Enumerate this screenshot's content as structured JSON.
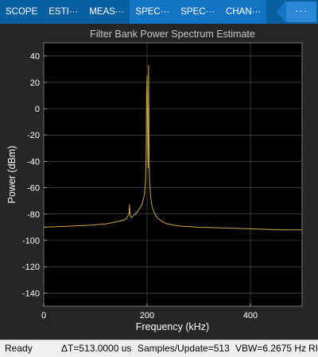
{
  "tabs": [
    {
      "label": "SCOPE",
      "active": false
    },
    {
      "label": "ESTI···",
      "active": false
    },
    {
      "label": "MEAS···",
      "active": false
    },
    {
      "label": "SPEC···",
      "active": true
    },
    {
      "label": "SPEC···",
      "active": true
    },
    {
      "label": "CHAN···",
      "active": true
    }
  ],
  "overflow_label": "···",
  "status": {
    "state": "Ready",
    "delta_t": "ΔT=513.0000 us",
    "samples": "Samples/Update=513",
    "vbw": "VBW=6.2675 Hz",
    "trailing": "RI"
  },
  "colors": {
    "toolstrip": "#0a5fa0",
    "plot_bg": "#000000",
    "trace": "#c9a84e",
    "grid": "#5a5a5a",
    "text": "#ffffff"
  },
  "chart_data": {
    "type": "line",
    "title": "Filter Bank Power Spectrum Estimate",
    "xlabel": "Frequency (kHz)",
    "ylabel": "Power (dBm)",
    "xlim": [
      0,
      500
    ],
    "ylim": [
      -150,
      50
    ],
    "xticks": [
      0,
      200,
      400
    ],
    "yticks": [
      40,
      20,
      0,
      -20,
      -40,
      -60,
      -80,
      -100,
      -120,
      -140
    ],
    "grid": true,
    "series": [
      {
        "x": [
          0,
          30,
          60,
          90,
          120,
          140,
          155,
          160,
          165,
          166,
          167,
          168,
          170,
          180,
          190,
          195,
          197,
          198,
          199,
          200,
          201,
          202,
          203,
          204,
          205,
          206,
          207,
          208,
          210,
          215,
          220,
          230,
          240,
          260,
          280,
          300,
          340,
          380,
          420,
          460,
          500
        ],
        "y": [
          -90,
          -89.5,
          -89,
          -88.5,
          -87.5,
          -86,
          -84.5,
          -83.5,
          -80,
          -73,
          -80,
          -82,
          -82.5,
          -79,
          -73,
          -65,
          -55,
          -40,
          10,
          25,
          -10,
          -45,
          33,
          -45,
          -55,
          -62,
          -67,
          -70,
          -75,
          -80,
          -83,
          -86,
          -87.5,
          -89,
          -89.5,
          -90,
          -90.5,
          -91,
          -91.5,
          -92,
          -92
        ]
      }
    ]
  }
}
